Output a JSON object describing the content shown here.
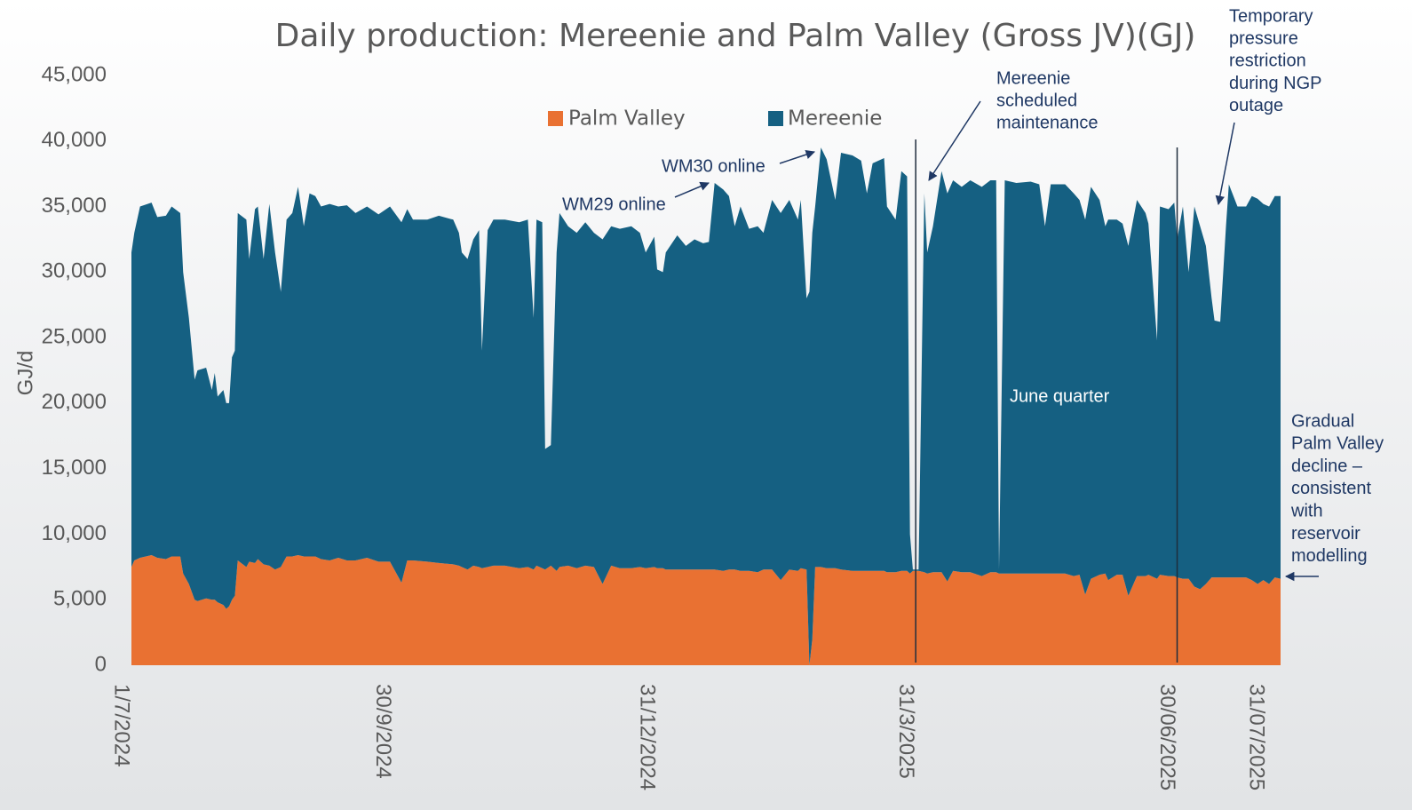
{
  "chart_data": {
    "type": "stacked_area",
    "title": "Daily production: Mereenie and Palm Valley (Gross JV)(GJ)",
    "ylabel": "GJ/d",
    "ylim": [
      0,
      45000
    ],
    "yticks": [
      0,
      {
        "value": 5000,
        "label": "5,000"
      },
      {
        "value": 10000,
        "label": "10,000"
      },
      {
        "value": 15000,
        "label": "15,000"
      },
      {
        "value": 20000,
        "label": "20,000"
      },
      {
        "value": 25000,
        "label": "25,000"
      },
      {
        "value": 30000,
        "label": "30,000"
      },
      {
        "value": 35000,
        "label": "35,000"
      },
      {
        "value": 40000,
        "label": "40,000"
      },
      {
        "value": 45000,
        "label": "45,000"
      }
    ],
    "xlim": [
      "2024-07-01",
      "2025-08-05"
    ],
    "xticks": [
      {
        "value": "2024-07-01",
        "label": "1/7/2024"
      },
      {
        "value": "2024-09-30",
        "label": "30/9/2024"
      },
      {
        "value": "2024-12-31",
        "label": "31/12/2024"
      },
      {
        "value": "2025-03-31",
        "label": "31/3/2025"
      },
      {
        "value": "2025-06-30",
        "label": "30/06/2025"
      },
      {
        "value": "2025-07-31",
        "label": "31/07/2025"
      }
    ],
    "legend": "top",
    "annotations": [
      [
        "WM29 online"
      ],
      [
        "WM30 online"
      ],
      [
        "Mereenie",
        "scheduled",
        "maintenance"
      ],
      [
        "Temporary",
        "pressure",
        "restriction",
        "during NGP",
        "outage"
      ],
      [
        "June quarter"
      ],
      [
        "Gradual",
        "Palm Valley",
        "decline –",
        "consistent",
        "with",
        "reservoir",
        "modelling"
      ]
    ],
    "x": [
      "2024-07-01",
      "2024-07-02",
      "2024-07-04",
      "2024-07-08",
      "2024-07-10",
      "2024-07-13",
      "2024-07-15",
      "2024-07-18",
      "2024-07-19",
      "2024-07-21",
      "2024-07-23",
      "2024-07-24",
      "2024-07-27",
      "2024-07-29",
      "2024-07-30",
      "2024-07-31",
      "2024-08-02",
      "2024-08-03",
      "2024-08-04",
      "2024-08-05",
      "2024-08-06",
      "2024-08-07",
      "2024-08-10",
      "2024-08-11",
      "2024-08-13",
      "2024-08-14",
      "2024-08-16",
      "2024-08-18",
      "2024-08-20",
      "2024-08-22",
      "2024-08-24",
      "2024-08-26",
      "2024-08-28",
      "2024-08-30",
      "2024-09-01",
      "2024-09-03",
      "2024-09-05",
      "2024-09-08",
      "2024-09-11",
      "2024-09-14",
      "2024-09-17",
      "2024-09-21",
      "2024-09-25",
      "2024-09-29",
      "2024-10-03",
      "2024-10-05",
      "2024-10-07",
      "2024-10-12",
      "2024-10-16",
      "2024-10-21",
      "2024-10-23",
      "2024-10-24",
      "2024-10-26",
      "2024-10-28",
      "2024-10-30",
      "2024-10-31",
      "2024-11-02",
      "2024-11-04",
      "2024-11-08",
      "2024-11-13",
      "2024-11-16",
      "2024-11-18",
      "2024-11-19",
      "2024-11-21",
      "2024-11-22",
      "2024-11-24",
      "2024-11-26",
      "2024-11-27",
      "2024-11-30",
      "2024-12-03",
      "2024-12-06",
      "2024-12-09",
      "2024-12-12",
      "2024-12-15",
      "2024-12-18",
      "2024-12-22",
      "2024-12-25",
      "2024-12-27",
      "2024-12-30",
      "2024-12-31",
      "2025-01-02",
      "2025-01-03",
      "2025-01-07",
      "2025-01-10",
      "2025-01-13",
      "2025-01-16",
      "2025-01-18",
      "2025-01-20",
      "2025-01-23",
      "2025-01-25",
      "2025-01-27",
      "2025-01-29",
      "2025-02-01",
      "2025-02-04",
      "2025-02-06",
      "2025-02-09",
      "2025-02-12",
      "2025-02-15",
      "2025-02-18",
      "2025-02-19",
      "2025-02-21",
      "2025-02-22",
      "2025-02-23",
      "2025-02-24",
      "2025-02-26",
      "2025-02-28",
      "2025-03-03",
      "2025-03-05",
      "2025-03-09",
      "2025-03-12",
      "2025-03-14",
      "2025-03-16",
      "2025-03-20",
      "2025-03-21",
      "2025-03-24",
      "2025-03-26",
      "2025-03-28",
      "2025-03-29",
      "2025-03-30",
      "2025-04-01",
      "2025-04-03",
      "2025-04-04",
      "2025-04-06",
      "2025-04-09",
      "2025-04-11",
      "2025-04-13",
      "2025-04-16",
      "2025-04-19",
      "2025-04-23",
      "2025-04-26",
      "2025-04-28",
      "2025-04-29",
      "2025-05-01",
      "2025-05-05",
      "2025-05-10",
      "2025-05-13",
      "2025-05-15",
      "2025-05-17",
      "2025-05-22",
      "2025-05-25",
      "2025-05-27",
      "2025-05-29",
      "2025-05-31",
      "2025-06-03",
      "2025-06-05",
      "2025-06-06",
      "2025-06-09",
      "2025-06-11",
      "2025-06-13",
      "2025-06-16",
      "2025-06-19",
      "2025-06-20",
      "2025-06-23",
      "2025-06-24",
      "2025-06-27",
      "2025-06-29",
      "2025-06-30",
      "2025-07-02",
      "2025-07-04",
      "2025-07-06",
      "2025-07-08",
      "2025-07-10",
      "2025-07-12",
      "2025-07-13",
      "2025-07-15",
      "2025-07-17",
      "2025-07-18",
      "2025-07-21",
      "2025-07-24",
      "2025-07-26",
      "2025-07-28",
      "2025-07-30",
      "2025-08-01",
      "2025-08-03",
      "2025-08-05"
    ],
    "series": [
      {
        "name": "Palm Valley",
        "color": "#e97132",
        "values": [
          7500,
          8000,
          8200,
          8400,
          8200,
          8100,
          8300,
          8300,
          7000,
          6200,
          5000,
          4900,
          5100,
          5000,
          5000,
          4800,
          4600,
          4300,
          4500,
          5000,
          5300,
          8000,
          7500,
          7900,
          7800,
          8100,
          7700,
          7600,
          7300,
          7500,
          8300,
          8300,
          8400,
          8300,
          8300,
          8300,
          8100,
          8000,
          8200,
          8000,
          8000,
          8200,
          7900,
          7900,
          6300,
          8000,
          8000,
          7900,
          7800,
          7700,
          7600,
          7500,
          7300,
          7600,
          7500,
          7400,
          7500,
          7600,
          7600,
          7400,
          7500,
          7300,
          7600,
          7400,
          7300,
          7600,
          7200,
          7500,
          7600,
          7400,
          7600,
          7500,
          6200,
          7600,
          7400,
          7400,
          7500,
          7400,
          7500,
          7400,
          7400,
          7300,
          7300,
          7300,
          7300,
          7300,
          7300,
          7300,
          7200,
          7300,
          7300,
          7200,
          7200,
          7100,
          7300,
          7300,
          6500,
          7300,
          7200,
          7400,
          7300,
          0,
          2000,
          7500,
          7500,
          7400,
          7400,
          7300,
          7200,
          7200,
          7200,
          7200,
          7200,
          7100,
          7100,
          7200,
          7200,
          7000,
          7200,
          7200,
          7100,
          7000,
          7100,
          7100,
          6400,
          7200,
          7100,
          7100,
          6800,
          7100,
          7100,
          7000,
          7000,
          7000,
          7000,
          7000,
          7000,
          7000,
          7000,
          6800,
          6900,
          5400,
          6600,
          6900,
          7000,
          6500,
          6900,
          6900,
          5300,
          6800,
          6800,
          6900,
          6600,
          6900,
          6800,
          6800,
          6700,
          6600,
          6600,
          6000,
          5800,
          6200,
          6700,
          6700,
          6700,
          6700,
          6700,
          6700,
          6700,
          6500,
          6200,
          6500,
          6200,
          6700,
          6600
        ]
      },
      {
        "name": "Mereenie",
        "color": "#156082",
        "values": [
          24000,
          25000,
          26800,
          26900,
          26000,
          26200,
          26700,
          26200,
          23000,
          20300,
          16800,
          17600,
          17600,
          16000,
          17300,
          15700,
          16400,
          15700,
          15500,
          18500,
          18700,
          26500,
          26500,
          23100,
          27000,
          26900,
          23300,
          27600,
          24200,
          21000,
          25700,
          26200,
          28100,
          25200,
          27700,
          27500,
          26900,
          27200,
          26800,
          27100,
          26500,
          26800,
          26500,
          27100,
          27500,
          26800,
          26000,
          26100,
          26500,
          26300,
          25400,
          24000,
          23700,
          24900,
          25700,
          16600,
          25700,
          26400,
          26400,
          26400,
          26500,
          19200,
          26400,
          26400,
          9200,
          9200,
          24300,
          27000,
          25900,
          25600,
          26200,
          25500,
          26300,
          25900,
          25900,
          26100,
          25500,
          24100,
          25200,
          22800,
          22600,
          24200,
          25500,
          24700,
          25200,
          24900,
          25000,
          29500,
          29100,
          28500,
          26200,
          27800,
          26100,
          26400,
          25700,
          28200,
          28000,
          28200,
          26800,
          28100,
          20700,
          28500,
          31000,
          27500,
          32000,
          31200,
          28100,
          31800,
          31700,
          31300,
          28800,
          31100,
          31500,
          27900,
          26900,
          30500,
          30100,
          3000,
          100,
          100,
          28900,
          24500,
          26400,
          30600,
          29600,
          29800,
          29400,
          29900,
          29700,
          29900,
          29900,
          300,
          30000,
          29800,
          29900,
          29700,
          26500,
          29700,
          29700,
          29200,
          28600,
          28600,
          29900,
          28600,
          26500,
          27500,
          27100,
          26800,
          26700,
          28700,
          27700,
          26800,
          18200,
          28100,
          28000,
          28500,
          25800,
          28400,
          23400,
          29000,
          27700,
          25800,
          21300,
          19600,
          19500,
          26800,
          30000,
          28300,
          28300,
          29300,
          29400,
          28700,
          28800,
          29100,
          29200
        ]
      }
    ]
  }
}
